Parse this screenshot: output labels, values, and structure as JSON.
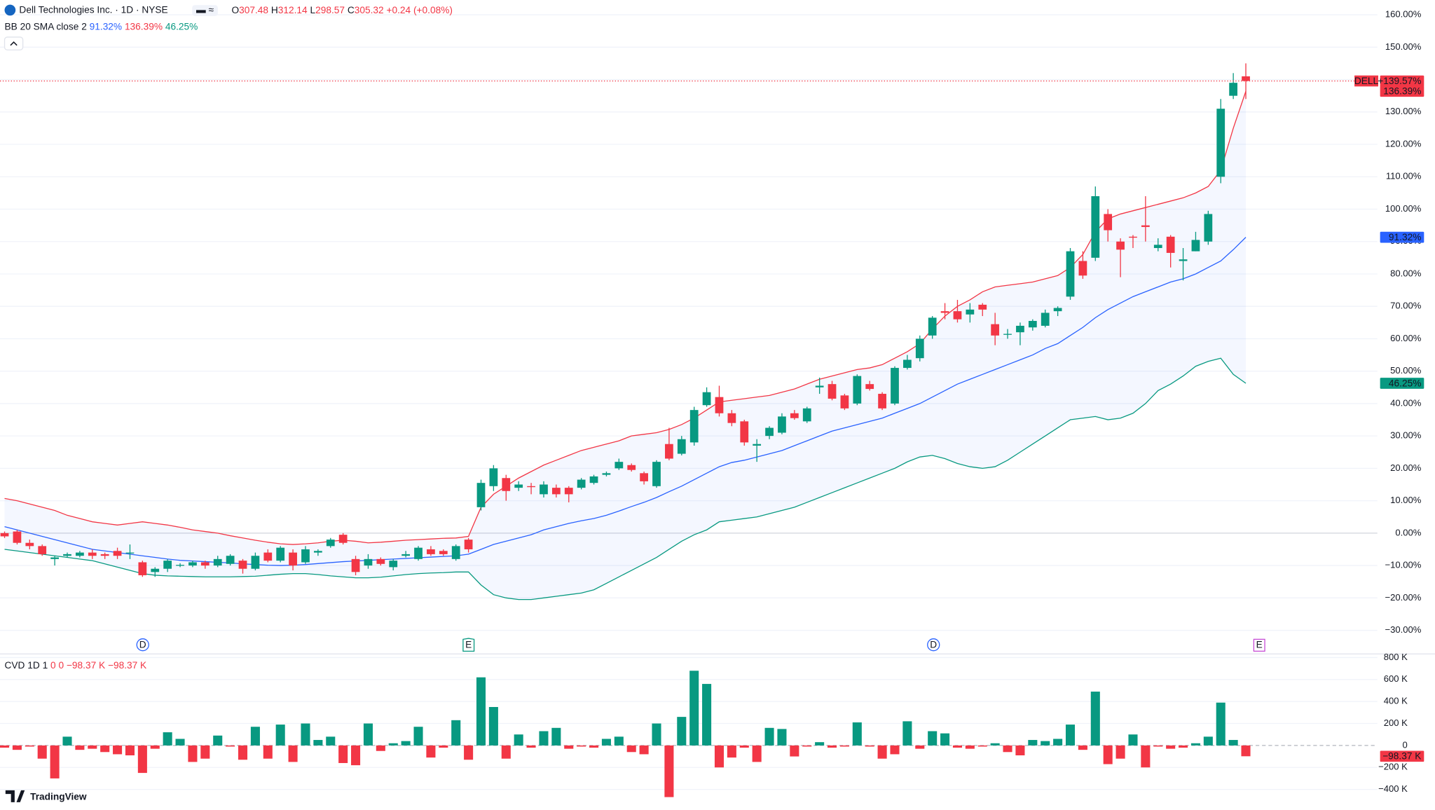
{
  "chart_data": [
    {
      "type": "candlestick",
      "title": "Dell Technologies Inc. · 1D · NYSE",
      "ohlc_legend": [
        {
          "key": "O",
          "value": 307.48
        },
        {
          "key": "H",
          "value": 312.14
        },
        {
          "key": "L",
          "value": 298.57
        },
        {
          "key": "C",
          "value": 305.32
        }
      ],
      "change": "+0.24 (+0.08%)",
      "indicator": {
        "name": "BB 20 SMA close 2",
        "values": [
          91.32,
          136.39,
          46.25
        ],
        "value_labels": [
          "91.32%",
          "136.39%",
          "46.25%"
        ],
        "colors": [
          "#2962ff",
          "#f23645",
          "#089981"
        ]
      },
      "up_color": "#089981",
      "down_color": "#f23645",
      "open": [
        0,
        0.5,
        -3,
        -4,
        -8,
        -7,
        -7,
        -6,
        -6.5,
        -5.5,
        -6,
        -9,
        -12,
        -11,
        -10,
        -10,
        -9,
        -10,
        -9.5,
        -8.5,
        -11,
        -6,
        -8.5,
        -6,
        -9,
        -6,
        -4,
        -0.5,
        -8,
        -10,
        -8,
        -10.5,
        -7,
        -8,
        -5,
        -5.5,
        -8,
        -2,
        8,
        14.5,
        17,
        14,
        14.5,
        12,
        14,
        14,
        14,
        15.5,
        18,
        20,
        21,
        18.5,
        14.5,
        27.5,
        24.5,
        28,
        39.5,
        42,
        37,
        34.5,
        27,
        30,
        31,
        37,
        34.5,
        45,
        46,
        42.5,
        40,
        46,
        43,
        40,
        51,
        54,
        61,
        68.5,
        68.5,
        67.5,
        70.5,
        64.5,
        61.5,
        62,
        63.5,
        64,
        68.5,
        73,
        84,
        85,
        98.5,
        90,
        91.5,
        95,
        88,
        91.5,
        84,
        87,
        90,
        110,
        135,
        141
      ],
      "high": [
        0.5,
        1,
        -2,
        -3.5,
        -7,
        -6,
        -5.5,
        -5,
        -6,
        -4.5,
        -3.5,
        -8.5,
        -10.5,
        -8,
        -9.3,
        -8.5,
        -8.5,
        -7,
        -6.5,
        -8,
        -6,
        -5,
        -4,
        -5,
        -4,
        -5,
        -1.5,
        0,
        -7,
        -6.5,
        -7.5,
        -8,
        -5.5,
        -4,
        -4,
        -5,
        -3.5,
        -1.5,
        16.5,
        21,
        18,
        16,
        15.5,
        16,
        15,
        14.5,
        17,
        18,
        19,
        23,
        21.5,
        19,
        22.5,
        32.5,
        30,
        39,
        45,
        45.5,
        38,
        35,
        29,
        33,
        37,
        38,
        39,
        48,
        47,
        43,
        49,
        47,
        43.5,
        51.5,
        55,
        61,
        67,
        71,
        72,
        71,
        71,
        68,
        63,
        65,
        66,
        69,
        70,
        88,
        87,
        107,
        100,
        91,
        92,
        104,
        91,
        92,
        88,
        93,
        99.5,
        134,
        142,
        145
      ],
      "low": [
        -1.5,
        -3.5,
        -5,
        -7,
        -10,
        -7.5,
        -7.5,
        -8,
        -8,
        -8,
        -8,
        -13.5,
        -13.5,
        -12,
        -10.5,
        -10.5,
        -11,
        -10.5,
        -10,
        -12.5,
        -11.5,
        -9,
        -9,
        -11.5,
        -9.5,
        -7,
        -4.5,
        -3.5,
        -13,
        -11,
        -10,
        -11.5,
        -7.5,
        -8.5,
        -7,
        -7,
        -8.5,
        -6,
        7,
        13,
        10,
        13,
        12,
        11,
        11,
        9.5,
        13.5,
        15,
        17.5,
        19.5,
        19,
        15,
        14,
        22.5,
        24,
        27,
        39,
        36,
        33,
        27,
        22,
        29,
        30.5,
        35,
        34,
        43,
        41,
        38,
        39.5,
        44,
        38,
        39.5,
        50.5,
        53,
        60,
        66,
        65,
        65,
        67,
        58,
        60,
        58,
        62.5,
        63.5,
        67,
        72,
        78.5,
        84,
        90,
        79,
        88,
        90,
        87,
        82,
        78,
        87,
        89,
        108,
        134,
        134
      ],
      "close": [
        -1,
        -3,
        -4,
        -6.5,
        -7.5,
        -6.5,
        -6,
        -7,
        -7,
        -7,
        -6,
        -13,
        -11,
        -8.5,
        -9.8,
        -9,
        -10,
        -8,
        -7,
        -11,
        -7,
        -8.5,
        -4.5,
        -10,
        -5,
        -5.5,
        -2,
        -3,
        -12,
        -8,
        -9.5,
        -8.5,
        -6.5,
        -4.5,
        -6.5,
        -6.5,
        -4,
        -5,
        15.5,
        20,
        13,
        15,
        14.2,
        15,
        12,
        12,
        16.5,
        17.5,
        18.5,
        22,
        19.5,
        16,
        22,
        23,
        29,
        38,
        43.5,
        37,
        34,
        28,
        27.5,
        32.5,
        36,
        35.5,
        38.5,
        45.5,
        41.5,
        38.5,
        48.5,
        44.5,
        38.5,
        51,
        53.5,
        60,
        66.5,
        68,
        66,
        69,
        69,
        61,
        61.5,
        64,
        65.5,
        68,
        69.5,
        87,
        79.5,
        104,
        93.5,
        87.5,
        91.2,
        94.5,
        89,
        86.5,
        84.5,
        90.5,
        98.5,
        131,
        139,
        139.57
      ],
      "series": [
        {
          "color": "#2962ff",
          "values": [
            2,
            1,
            0,
            -1,
            -2,
            -3,
            -4,
            -5,
            -5.5,
            -6,
            -6.5,
            -7,
            -7.5,
            -8,
            -8.4,
            -8.6,
            -8.8,
            -9,
            -9.2,
            -9.5,
            -9.7,
            -9.9,
            -10,
            -9.9,
            -9.7,
            -9.4,
            -9.1,
            -8.8,
            -8.6,
            -8.4,
            -8.2,
            -8,
            -7.8,
            -7.6,
            -7.4,
            -7.2,
            -7,
            -6.5,
            -5,
            -3.5,
            -2.5,
            -1.5,
            -0.5,
            1,
            2,
            3,
            3.8,
            4.5,
            5.5,
            6.8,
            8.2,
            9.5,
            11,
            12.8,
            14.5,
            16.5,
            18.5,
            20.5,
            21.8,
            22.5,
            23.5,
            24.5,
            25.5,
            27,
            28.5,
            30,
            31.5,
            32.5,
            33.5,
            34.5,
            35.5,
            37,
            38.5,
            40,
            42,
            44,
            46,
            47.5,
            49,
            50.5,
            52,
            53.5,
            55,
            57,
            58.5,
            61,
            63.5,
            66.5,
            69,
            71,
            73,
            74.5,
            76,
            77.5,
            78.5,
            80,
            82,
            84,
            87.5,
            91.32
          ]
        },
        {
          "color": "#f23645",
          "values": [
            10.7,
            10,
            9,
            8,
            7,
            5.5,
            4.5,
            3.5,
            3,
            2.5,
            3,
            3.5,
            3,
            2.5,
            1.8,
            1,
            0.5,
            0,
            -0.8,
            -1.5,
            -2.2,
            -2.8,
            -3.3,
            -3.5,
            -3.3,
            -3,
            -2.5,
            -2.2,
            -2.5,
            -3,
            -2.8,
            -2.5,
            -2.2,
            -2,
            -1.8,
            -1.6,
            -1.5,
            -1,
            8,
            12,
            14.5,
            17,
            19,
            21,
            22.5,
            24,
            25.5,
            26.5,
            27.5,
            28.5,
            30,
            30.5,
            31,
            32,
            33.5,
            35.5,
            38,
            40.5,
            41,
            41.5,
            42,
            42.5,
            43.5,
            44.5,
            46,
            47.5,
            48.5,
            49.5,
            50.5,
            51,
            52,
            54,
            56,
            58.5,
            63,
            67,
            70,
            72,
            74.5,
            76,
            76.5,
            77,
            77.5,
            78.5,
            79.5,
            82,
            86,
            93,
            97,
            98.5,
            99.5,
            100.5,
            101.5,
            102.5,
            103.5,
            105,
            107,
            112,
            125,
            136.39
          ]
        },
        {
          "color": "#089981",
          "values": [
            -5,
            -5.5,
            -6,
            -6.5,
            -7,
            -7.5,
            -8,
            -8.5,
            -9.5,
            -10.5,
            -11.5,
            -12.5,
            -13,
            -13.2,
            -13.3,
            -13.4,
            -13.5,
            -13.5,
            -13.5,
            -13.4,
            -13.3,
            -13,
            -12.7,
            -12.5,
            -12.5,
            -12.8,
            -13.2,
            -13.5,
            -13.8,
            -13.8,
            -13.6,
            -13.2,
            -12.8,
            -12.5,
            -12.3,
            -12.2,
            -12,
            -12,
            -16,
            -19,
            -20,
            -20.5,
            -20.5,
            -20,
            -19.5,
            -19,
            -18.5,
            -17.5,
            -15.5,
            -13.5,
            -11.5,
            -9.5,
            -7.5,
            -5,
            -2.5,
            -0.5,
            1,
            3.5,
            4,
            4.5,
            5,
            6,
            7,
            8,
            9.5,
            11,
            12.5,
            14,
            15.5,
            17,
            18.5,
            20,
            22,
            23.5,
            24,
            23,
            21.5,
            20.5,
            20,
            20.5,
            22.5,
            25,
            27.5,
            30,
            32.5,
            35,
            35.5,
            36,
            35,
            35.5,
            37,
            40,
            44,
            46,
            48.5,
            51.5,
            53,
            54,
            49,
            46.25
          ]
        }
      ],
      "band_fill": "#2962ff",
      "ylim": [
        -37.29,
        164.41
      ],
      "yticks": [
        {
          "value": -30,
          "label": "−30.00%"
        },
        {
          "value": -20,
          "label": "−20.00%"
        },
        {
          "value": -10,
          "label": "−10.00%"
        },
        {
          "value": 0,
          "label": "0.00%"
        },
        {
          "value": 10,
          "label": "10.00%"
        },
        {
          "value": 20,
          "label": "20.00%"
        },
        {
          "value": 30,
          "label": "30.00%"
        },
        {
          "value": 40,
          "label": "40.00%"
        },
        {
          "value": 50,
          "label": "50.00%"
        },
        {
          "value": 60,
          "label": "60.00%"
        },
        {
          "value": 70,
          "label": "70.00%"
        },
        {
          "value": 80,
          "label": "80.00%"
        },
        {
          "value": 90,
          "label": "90.00%"
        },
        {
          "value": 100,
          "label": "100.00%"
        },
        {
          "value": 110,
          "label": "110.00%"
        },
        {
          "value": 120,
          "label": "120.00%"
        },
        {
          "value": 130,
          "label": "130.00%"
        },
        {
          "value": 140,
          "label": "140.00%"
        },
        {
          "value": 150,
          "label": "150.00%"
        },
        {
          "value": 160,
          "label": "160.00%"
        }
      ],
      "grid": true,
      "price_labels": [
        {
          "name": "DELL",
          "value": 139.57,
          "label": "+139.57%",
          "color": "#f23645"
        },
        {
          "value": 136.39,
          "label": "136.39%",
          "color": "#f23645"
        },
        {
          "value": 91.32,
          "label": "91.32%",
          "color": "#2962ff"
        },
        {
          "value": 46.25,
          "label": "46.25%",
          "color": "#089981"
        }
      ],
      "events": [
        "D",
        "E",
        "D",
        "E"
      ]
    },
    {
      "type": "bar",
      "title": "CVD 1D 1",
      "legend": {
        "values": [
          0,
          0,
          -98370,
          -98370
        ],
        "value_labels": [
          "0",
          "0",
          "−98.37 K",
          "−98.37 K"
        ]
      },
      "up_color": "#089981",
      "down_color": "#f23645",
      "values": [
        -20000,
        -40000,
        -10000,
        -120000,
        -300000,
        80000,
        -40000,
        -30000,
        -60000,
        -80000,
        -90000,
        -250000,
        -30000,
        120000,
        60000,
        -150000,
        -120000,
        90000,
        -10000,
        -130000,
        170000,
        -120000,
        190000,
        -150000,
        200000,
        50000,
        80000,
        -160000,
        -180000,
        200000,
        -50000,
        20000,
        40000,
        170000,
        -110000,
        -20000,
        230000,
        -130000,
        620000,
        350000,
        -120000,
        100000,
        -20000,
        130000,
        160000,
        -30000,
        -10000,
        -20000,
        60000,
        80000,
        -60000,
        -80000,
        200000,
        -470000,
        260000,
        680000,
        560000,
        -200000,
        -110000,
        -20000,
        -150000,
        160000,
        150000,
        -100000,
        -10000,
        30000,
        -20000,
        -10000,
        210000,
        -10000,
        -120000,
        -80000,
        220000,
        -30000,
        130000,
        110000,
        -20000,
        -30000,
        -10000,
        20000,
        -60000,
        -90000,
        50000,
        40000,
        60000,
        190000,
        -40000,
        490000,
        -170000,
        -120000,
        100000,
        -200000,
        -10000,
        -30000,
        -20000,
        20000,
        80000,
        390000,
        50000,
        -98370
      ],
      "ylim": [
        -583000,
        833000
      ],
      "yticks": [
        {
          "value": -400000,
          "label": "−400 K"
        },
        {
          "value": -200000,
          "label": "−200 K"
        },
        0,
        {
          "value": 200000,
          "label": "200 K"
        },
        {
          "value": 400000,
          "label": "400 K"
        },
        {
          "value": 600000,
          "label": "600 K"
        },
        {
          "value": 800000,
          "label": "800 K"
        }
      ],
      "last_label": {
        "value": -98370,
        "label": "−98.37 K",
        "color": "#f23645"
      }
    }
  ],
  "branding": "TradingView"
}
